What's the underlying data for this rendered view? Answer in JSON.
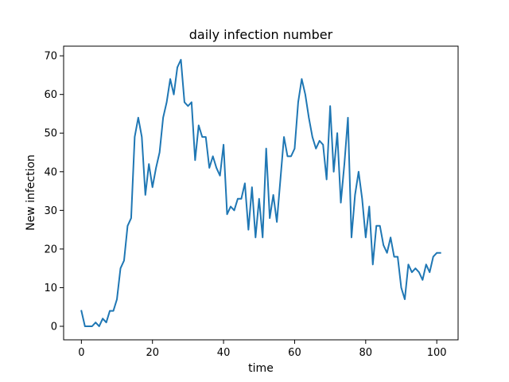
{
  "chart_data": {
    "type": "line",
    "title": "daily infection number",
    "xlabel": "time",
    "ylabel": "New infection",
    "xlim": [
      -5,
      106
    ],
    "ylim": [
      -3.5,
      72.5
    ],
    "xticks": [
      0,
      20,
      40,
      60,
      80,
      100
    ],
    "yticks": [
      0,
      10,
      20,
      30,
      40,
      50,
      60,
      70
    ],
    "grid": false,
    "series": [
      {
        "color": "#1f77b4",
        "x": [
          0,
          1,
          2,
          3,
          4,
          5,
          6,
          7,
          8,
          9,
          10,
          11,
          12,
          13,
          14,
          15,
          16,
          17,
          18,
          19,
          20,
          21,
          22,
          23,
          24,
          25,
          26,
          27,
          28,
          29,
          30,
          31,
          32,
          33,
          34,
          35,
          36,
          37,
          38,
          39,
          40,
          41,
          42,
          43,
          44,
          45,
          46,
          47,
          48,
          49,
          50,
          51,
          52,
          53,
          54,
          55,
          56,
          57,
          58,
          59,
          60,
          61,
          62,
          63,
          64,
          65,
          66,
          67,
          68,
          69,
          70,
          71,
          72,
          73,
          74,
          75,
          76,
          77,
          78,
          79,
          80,
          81,
          82,
          83,
          84,
          85,
          86,
          87,
          88,
          89,
          90,
          91,
          92,
          93,
          94,
          95,
          96,
          97,
          98,
          99,
          100,
          101
        ],
        "y": [
          4,
          0,
          0,
          0,
          1,
          0,
          2,
          1,
          4,
          4,
          7,
          15,
          17,
          26,
          28,
          49,
          54,
          49,
          34,
          42,
          36,
          41,
          45,
          54,
          58,
          64,
          60,
          67,
          69,
          58,
          57,
          58,
          43,
          52,
          49,
          49,
          41,
          44,
          41,
          39,
          47,
          29,
          31,
          30,
          33,
          33,
          37,
          25,
          36,
          23,
          33,
          23,
          46,
          28,
          34,
          27,
          38,
          49,
          44,
          44,
          46,
          58,
          64,
          60,
          54,
          49,
          46,
          48,
          47,
          38,
          57,
          40,
          50,
          32,
          42,
          54,
          23,
          34,
          40,
          33,
          23,
          31,
          16,
          26,
          26,
          21,
          19,
          23,
          18,
          18,
          10,
          7,
          16,
          14,
          15,
          14,
          12,
          16,
          14,
          18,
          19,
          19
        ]
      }
    ]
  }
}
